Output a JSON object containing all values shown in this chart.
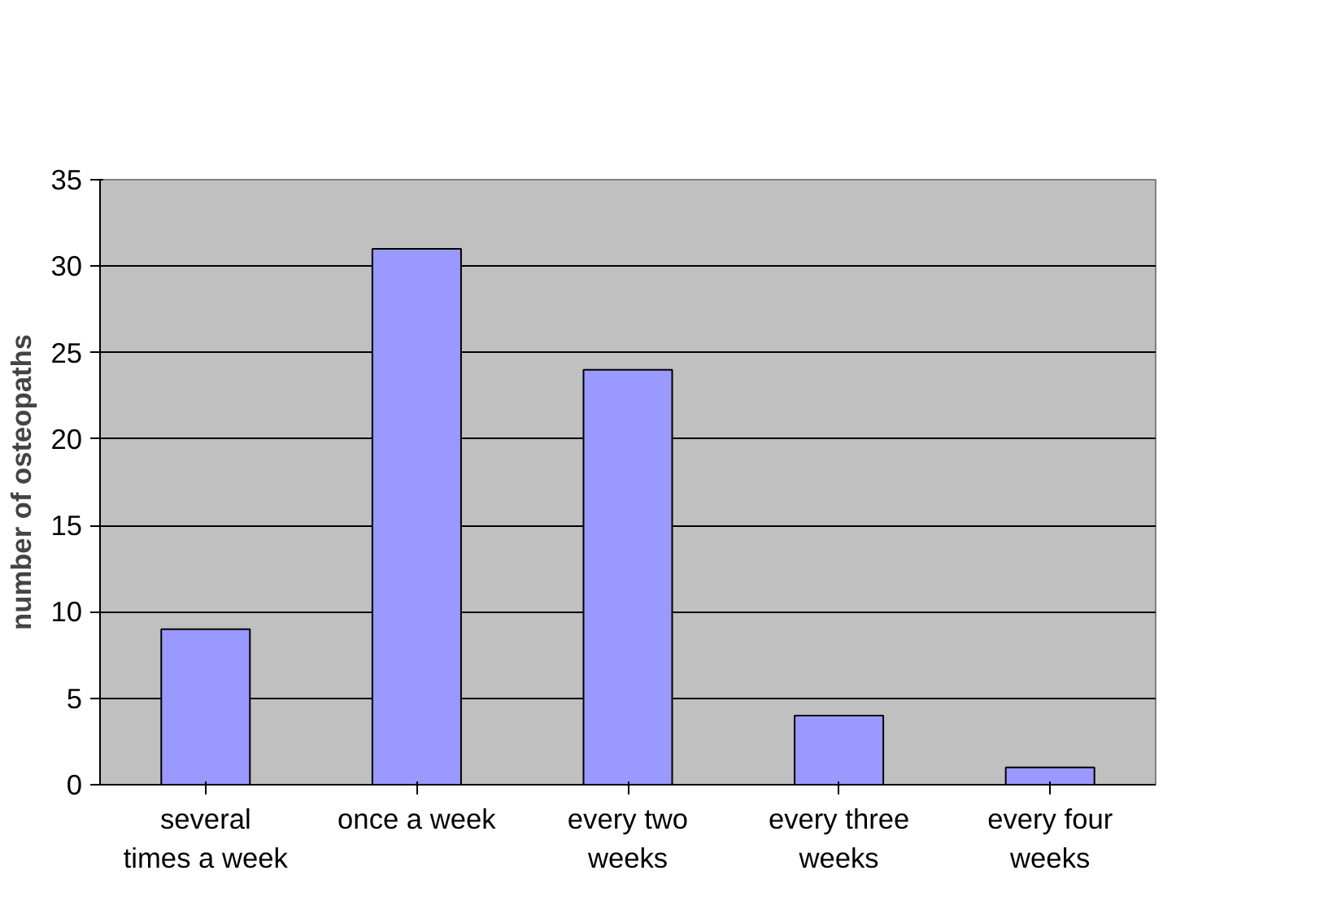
{
  "chart_data": {
    "type": "bar",
    "ylabel": "number of osteopaths",
    "categories": [
      "several times a week",
      "once a week",
      "every two weeks",
      "every three weeks",
      "every four weeks"
    ],
    "values": [
      9,
      31,
      24,
      4,
      1
    ],
    "color": "#9999ff",
    "ylim": [
      0,
      35
    ],
    "yticks": [
      0,
      5,
      10,
      15,
      20,
      25,
      30,
      35
    ],
    "grid": "y"
  }
}
